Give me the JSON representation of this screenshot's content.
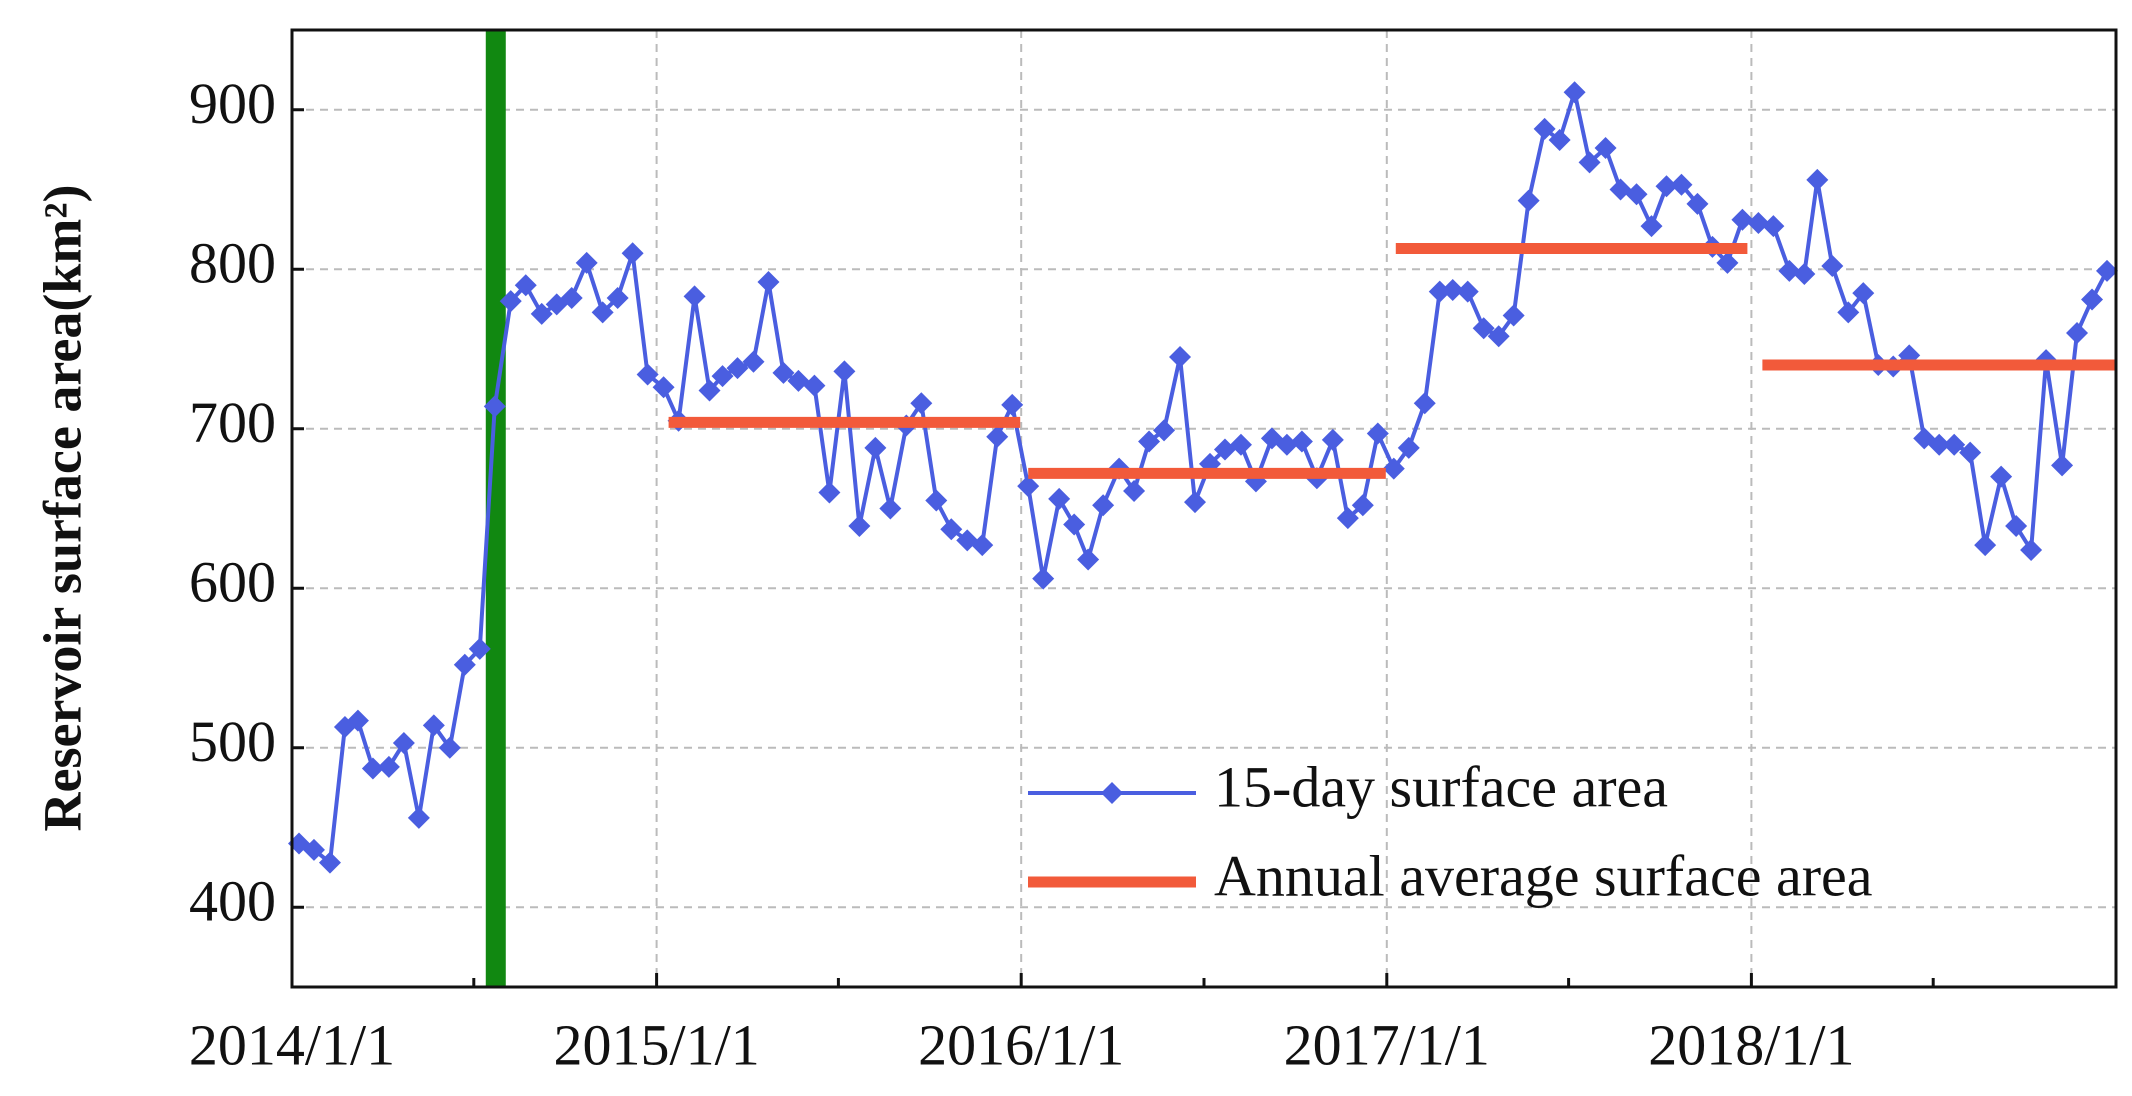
{
  "chart_data": {
    "type": "line",
    "ylabel": "Reservoir surface area(km²)",
    "xlim": [
      "2014/1/1",
      "2019/1/1"
    ],
    "xticks": [
      "2014/1/1",
      "2015/1/1",
      "2016/1/1",
      "2017/1/1",
      "2018/1/1"
    ],
    "xminor": [
      "2014/7/2",
      "2015/7/2",
      "2016/7/2",
      "2017/7/2",
      "2018/7/2"
    ],
    "ylim": [
      350,
      950
    ],
    "yticks": [
      400,
      500,
      600,
      700,
      800,
      900
    ],
    "grid": true,
    "legend": "lower right",
    "vline": {
      "x": "2014/7/24",
      "color": "#118811"
    },
    "series": [
      {
        "name": "15-day surface area",
        "color": "#4a5ee0",
        "x": [
          "2014/1/8",
          "2014/1/23",
          "2014/2/8",
          "2014/2/23",
          "2014/3/8",
          "2014/3/23",
          "2014/4/8",
          "2014/4/23",
          "2014/5/8",
          "2014/5/23",
          "2014/6/8",
          "2014/6/23",
          "2014/7/8",
          "2014/7/23",
          "2014/8/8",
          "2014/8/23",
          "2014/9/8",
          "2014/9/23",
          "2014/10/8",
          "2014/10/23",
          "2014/11/8",
          "2014/11/23",
          "2014/12/8",
          "2014/12/23",
          "2015/1/8",
          "2015/1/23",
          "2015/2/8",
          "2015/2/23",
          "2015/3/8",
          "2015/3/23",
          "2015/4/8",
          "2015/4/23",
          "2015/5/8",
          "2015/5/23",
          "2015/6/8",
          "2015/6/23",
          "2015/7/8",
          "2015/7/23",
          "2015/8/8",
          "2015/8/23",
          "2015/9/8",
          "2015/9/23",
          "2015/10/8",
          "2015/10/23",
          "2015/11/8",
          "2015/11/23",
          "2015/12/8",
          "2015/12/23",
          "2016/1/8",
          "2016/1/23",
          "2016/2/8",
          "2016/2/23",
          "2016/3/8",
          "2016/3/23",
          "2016/4/8",
          "2016/4/23",
          "2016/5/8",
          "2016/5/23",
          "2016/6/8",
          "2016/6/23",
          "2016/7/8",
          "2016/7/23",
          "2016/8/8",
          "2016/8/23",
          "2016/9/8",
          "2016/9/23",
          "2016/10/8",
          "2016/10/23",
          "2016/11/8",
          "2016/11/23",
          "2016/12/8",
          "2016/12/23",
          "2017/1/8",
          "2017/1/23",
          "2017/2/8",
          "2017/2/23",
          "2017/3/8",
          "2017/3/23",
          "2017/4/8",
          "2017/4/23",
          "2017/5/8",
          "2017/5/23",
          "2017/6/8",
          "2017/6/23",
          "2017/7/8",
          "2017/7/23",
          "2017/8/8",
          "2017/8/23",
          "2017/9/8",
          "2017/9/23",
          "2017/10/8",
          "2017/10/23",
          "2017/11/8",
          "2017/11/23",
          "2017/12/8",
          "2017/12/23",
          "2018/1/8",
          "2018/1/23",
          "2018/2/8",
          "2018/2/23",
          "2018/3/8",
          "2018/3/23",
          "2018/4/8",
          "2018/4/23",
          "2018/5/8",
          "2018/5/23",
          "2018/6/8",
          "2018/6/23",
          "2018/7/8",
          "2018/7/23",
          "2018/8/8",
          "2018/8/23",
          "2018/9/8",
          "2018/9/23",
          "2018/10/8",
          "2018/10/23",
          "2018/11/8",
          "2018/11/23",
          "2018/12/8",
          "2018/12/23"
        ],
        "values": [
          440,
          436,
          428,
          513,
          517,
          487,
          488,
          503,
          456,
          514,
          500,
          552,
          562,
          714,
          780,
          790,
          772,
          778,
          782,
          804,
          773,
          782,
          810,
          734,
          726,
          705,
          783,
          724,
          733,
          738,
          742,
          792,
          735,
          730,
          727,
          660,
          736,
          639,
          688,
          650,
          702,
          716,
          655,
          637,
          630,
          627,
          695,
          715,
          664,
          606,
          656,
          640,
          618,
          652,
          675,
          661,
          692,
          699,
          745,
          654,
          678,
          687,
          690,
          667,
          694,
          690,
          692,
          669,
          693,
          644,
          652,
          697,
          675,
          688,
          716,
          786,
          787,
          786,
          763,
          758,
          771,
          843,
          888,
          881,
          911,
          867,
          876,
          850,
          847,
          827,
          852,
          853,
          841,
          814,
          804,
          831,
          829,
          827,
          799,
          797,
          856,
          802,
          773,
          785,
          740,
          739,
          746,
          694,
          690,
          690,
          685,
          627,
          670,
          639,
          624,
          743,
          677,
          760,
          781,
          799
        ]
      },
      {
        "name": "Annual average surface area",
        "color": "#f25a3a",
        "x_start": [
          "2015/1/13",
          "2016/1/8",
          "2017/1/10",
          "2018/1/12"
        ],
        "x_end": [
          "2015/12/31",
          "2016/12/31",
          "2017/12/28",
          "2018/12/31"
        ],
        "values": [
          704,
          672,
          813,
          740
        ]
      }
    ]
  }
}
